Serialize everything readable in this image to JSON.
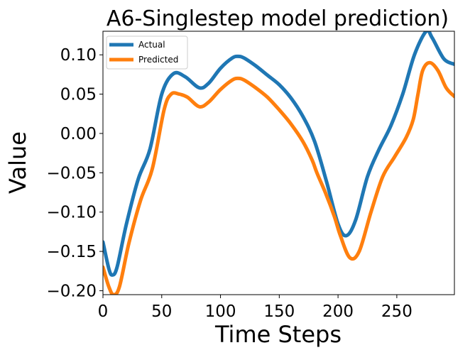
{
  "chart_data": {
    "type": "line",
    "title": "A6-Singlestep model prediction)",
    "xlabel": "Time Steps",
    "ylabel": "Value",
    "xlim": [
      0,
      299
    ],
    "ylim": [
      -0.205,
      0.13
    ],
    "xticks": [
      0,
      50,
      100,
      150,
      200,
      250
    ],
    "xtick_labels": [
      "0",
      "50",
      "100",
      "150",
      "200",
      "250"
    ],
    "yticks": [
      -0.2,
      -0.15,
      -0.1,
      -0.05,
      0.0,
      0.05,
      0.1
    ],
    "ytick_labels": [
      "−0.20",
      "−0.15",
      "−0.10",
      "−0.05",
      "0.00",
      "0.05",
      "0.10"
    ],
    "grid": false,
    "legend_position": "top-left",
    "series": [
      {
        "name": "Actual",
        "color": "#1f77b4",
        "x": [
          0,
          5,
          8,
          12,
          20,
          30,
          40,
          50,
          60,
          70,
          82,
          90,
          100,
          110,
          115,
          120,
          130,
          140,
          150,
          160,
          170,
          180,
          190,
          200,
          207,
          215,
          225,
          235,
          245,
          255,
          265,
          275,
          280,
          290,
          299
        ],
        "y": [
          -0.138,
          -0.172,
          -0.18,
          -0.17,
          -0.115,
          -0.058,
          -0.02,
          0.05,
          0.076,
          0.072,
          0.058,
          0.064,
          0.083,
          0.096,
          0.098,
          0.096,
          0.086,
          0.074,
          0.062,
          0.045,
          0.022,
          -0.01,
          -0.06,
          -0.115,
          -0.13,
          -0.11,
          -0.055,
          -0.02,
          0.01,
          0.05,
          0.1,
          0.13,
          0.122,
          0.095,
          0.088
        ]
      },
      {
        "name": "Predicted",
        "color": "#ff7f0e",
        "x": [
          0,
          5,
          9,
          14,
          22,
          32,
          42,
          52,
          58,
          65,
          72,
          82,
          90,
          100,
          110,
          115,
          120,
          130,
          140,
          150,
          160,
          170,
          178,
          182,
          190,
          197,
          202,
          210,
          218,
          228,
          238,
          248,
          258,
          264,
          268,
          272,
          278,
          285,
          292,
          299
        ],
        "y": [
          -0.17,
          -0.195,
          -0.205,
          -0.195,
          -0.14,
          -0.085,
          -0.045,
          0.03,
          0.05,
          0.05,
          0.046,
          0.034,
          0.04,
          0.056,
          0.068,
          0.07,
          0.068,
          0.058,
          0.046,
          0.03,
          0.012,
          -0.01,
          -0.034,
          -0.05,
          -0.078,
          -0.106,
          -0.13,
          -0.158,
          -0.15,
          -0.1,
          -0.055,
          -0.03,
          -0.005,
          0.018,
          0.05,
          0.08,
          0.09,
          0.08,
          0.058,
          0.047
        ]
      }
    ]
  }
}
